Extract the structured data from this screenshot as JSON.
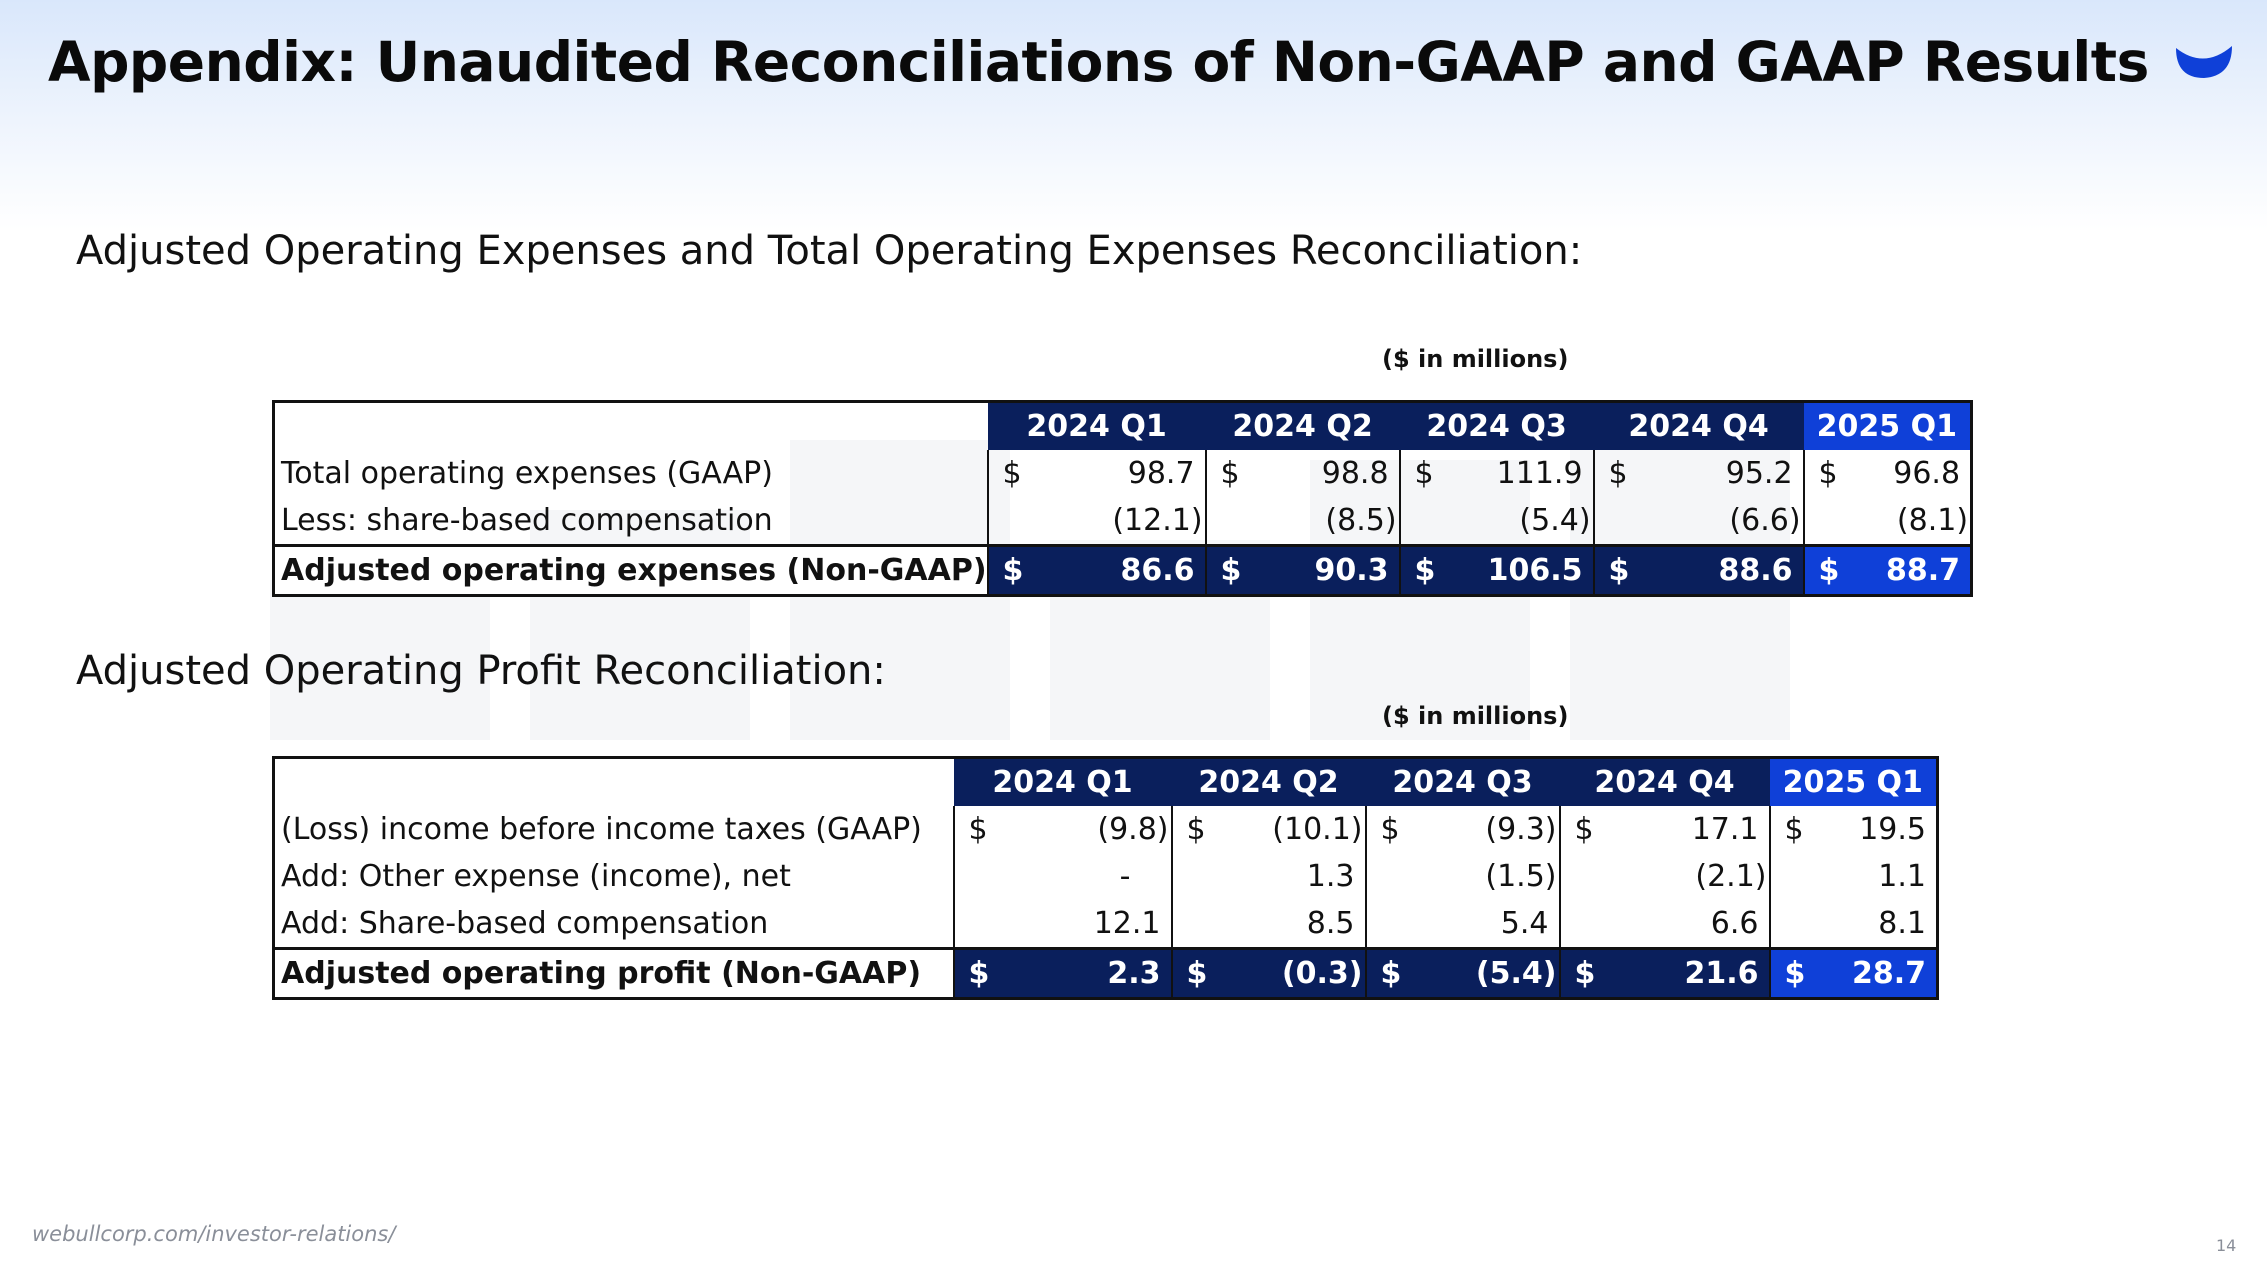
{
  "slide": {
    "title": "Appendix: Unaudited Reconciliations of Non-GAAP and GAAP Results",
    "footer_url": "webullcorp.com/investor-relations/",
    "page_number": "14",
    "brand_color": "#0f40d8",
    "dark_color": "#0a1f5c"
  },
  "opex": {
    "section_title": "Adjusted Operating Expenses and Total Operating Expenses Reconciliation:",
    "units": "($ in millions)",
    "headers": [
      "2024 Q1",
      "2024 Q2",
      "2024 Q3",
      "2024 Q4",
      "2025 Q1"
    ],
    "rows": [
      {
        "label": "Total operating expenses (GAAP)",
        "cur": [
          "$",
          "$",
          "$",
          "$",
          "$"
        ],
        "values": [
          "98.7",
          "98.8",
          "111.9",
          "95.2",
          "96.8"
        ]
      },
      {
        "label": "Less: share-based compensation",
        "cur": [
          "",
          "",
          "",
          "",
          ""
        ],
        "values": [
          "(12.1)",
          "(8.5)",
          "(5.4)",
          "(6.6)",
          "(8.1)"
        ]
      }
    ],
    "total": {
      "label": "Adjusted operating expenses (Non-GAAP)",
      "cur": [
        "$",
        "$",
        "$",
        "$",
        "$"
      ],
      "values": [
        "86.6",
        "90.3",
        "106.5",
        "88.6",
        "88.7"
      ]
    }
  },
  "profit": {
    "section_title": "Adjusted Operating Profit Reconciliation:",
    "units": "($ in millions)",
    "headers": [
      "2024 Q1",
      "2024 Q2",
      "2024 Q3",
      "2024 Q4",
      "2025 Q1"
    ],
    "rows": [
      {
        "label": "(Loss) income before income taxes (GAAP)",
        "cur": [
          "$",
          "$",
          "$",
          "$",
          "$"
        ],
        "values": [
          "(9.8)",
          "(10.1)",
          "(9.3)",
          "17.1",
          "19.5"
        ]
      },
      {
        "label": "Add: Other expense (income), net",
        "cur": [
          "",
          "",
          "",
          "",
          ""
        ],
        "values": [
          "-",
          "1.3",
          "(1.5)",
          "(2.1)",
          "1.1"
        ]
      },
      {
        "label": "Add: Share-based compensation",
        "cur": [
          "",
          "",
          "",
          "",
          ""
        ],
        "values": [
          "12.1",
          "8.5",
          "5.4",
          "6.6",
          "8.1"
        ]
      }
    ],
    "total": {
      "label": "Adjusted operating profit (Non-GAAP)",
      "cur": [
        "$",
        "$",
        "$",
        "$",
        "$"
      ],
      "values": [
        "2.3",
        "(0.3)",
        "(5.4)",
        "21.6",
        "28.7"
      ]
    }
  }
}
